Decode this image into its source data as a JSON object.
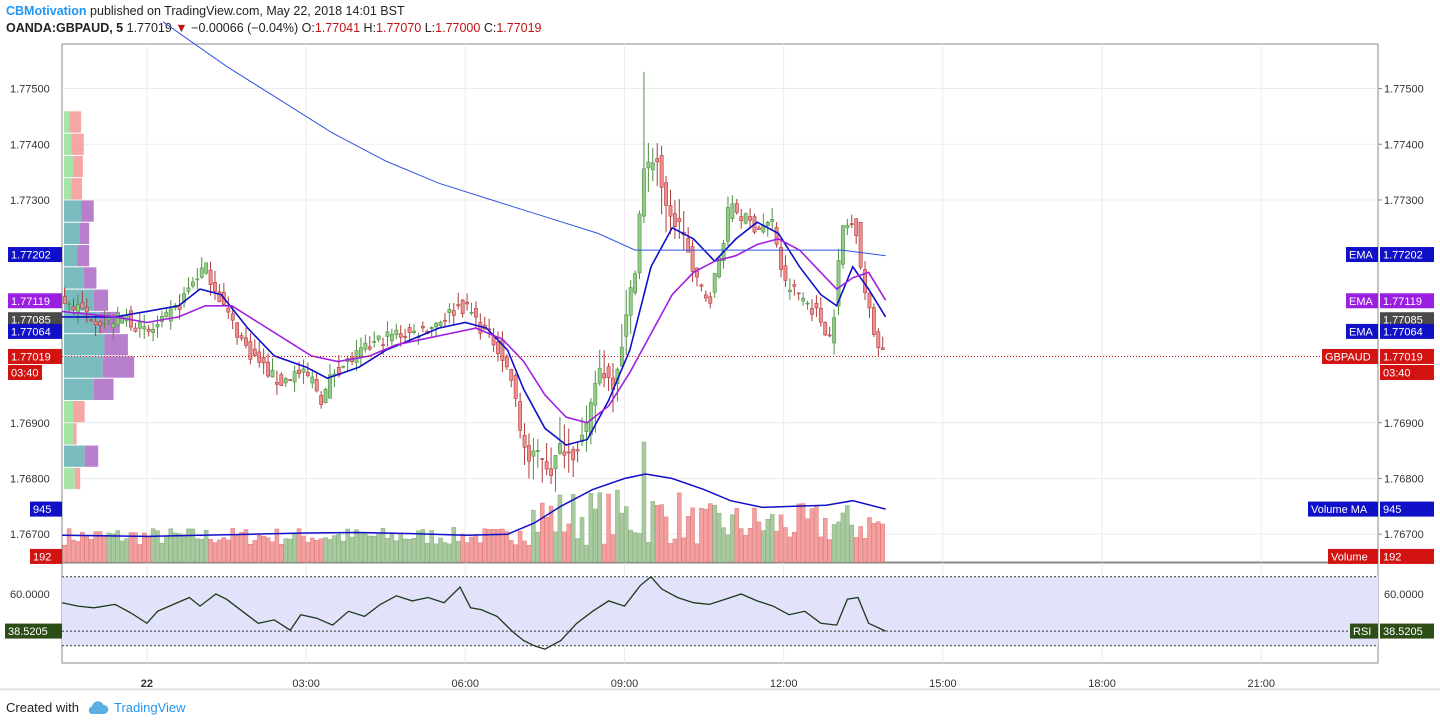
{
  "header": {
    "author": "CBMotivation",
    "published_text": "published on TradingView.com, May 22, 2018 14:01 BST",
    "symbol": "OANDA:GBPAUD, 5",
    "last": "1.77019",
    "change": "−0.00066 (−0.04%)",
    "o_label": "O:",
    "o_val": "1.77041",
    "h_label": "H:",
    "h_val": "1.77070",
    "l_label": "L:",
    "l_val": "1.77000",
    "c_label": "C:",
    "c_val": "1.77019"
  },
  "footer": {
    "created_with": "Created with",
    "brand": "TradingView"
  },
  "colors": {
    "up": "#8fce84",
    "down": "#f08f8f",
    "ema_fast": "#1010c8",
    "ema_slow": "#a020e0",
    "ema_long": "#3355e0",
    "price_line": "#d31212",
    "rsi_line": "#1a3a1a",
    "rsi_band": "#e2e2fb",
    "vol_ma": "#1010c8",
    "label_blue": "#1010c8",
    "label_purple": "#9b1fe0",
    "label_dark": "#4a4a4a",
    "label_red": "#d31212",
    "label_green": "#2d4d17"
  },
  "chart_data": {
    "type": "candlestick",
    "symbol": "GBPAUD",
    "timeframe": "5",
    "price_axis_ticks": [
      "1.77500",
      "1.77400",
      "1.77300",
      "1.76900",
      "1.76800",
      "1.76700"
    ],
    "right_price_ticks": [
      "1.77500",
      "1.77400",
      "1.77300",
      "1.76900",
      "1.76800",
      "1.76700"
    ],
    "ylim": [
      1.7665,
      1.7758
    ],
    "x_tick_labels": [
      "22",
      "03:00",
      "06:00",
      "09:00",
      "12:00",
      "15:00",
      "18:00",
      "21:00"
    ],
    "x_tick_hours": [
      0,
      3,
      6,
      9,
      12,
      15,
      18,
      21
    ],
    "xlim_hours": [
      -1.6,
      23.2
    ],
    "last_hour": 13.92,
    "close_path": [
      [
        -1.6,
        1.7712
      ],
      [
        -1.2,
        1.771
      ],
      [
        -0.8,
        1.7708
      ],
      [
        -0.4,
        1.7709
      ],
      [
        0.0,
        1.7706
      ],
      [
        0.3,
        1.7708
      ],
      [
        0.6,
        1.7711
      ],
      [
        0.9,
        1.7716
      ],
      [
        1.1,
        1.7718
      ],
      [
        1.3,
        1.7714
      ],
      [
        1.6,
        1.7708
      ],
      [
        1.9,
        1.7703
      ],
      [
        2.2,
        1.77
      ],
      [
        2.5,
        1.7697
      ],
      [
        2.8,
        1.7699
      ],
      [
        3.1,
        1.7698
      ],
      [
        3.3,
        1.7694
      ],
      [
        3.5,
        1.7699
      ],
      [
        3.8,
        1.7701
      ],
      [
        4.1,
        1.7703
      ],
      [
        4.4,
        1.7705
      ],
      [
        4.7,
        1.7706
      ],
      [
        5.0,
        1.7706
      ],
      [
        5.3,
        1.7707
      ],
      [
        5.6,
        1.7709
      ],
      [
        5.9,
        1.7711
      ],
      [
        6.1,
        1.771
      ],
      [
        6.3,
        1.7707
      ],
      [
        6.6,
        1.7704
      ],
      [
        6.9,
        1.7697
      ],
      [
        7.0,
        1.769
      ],
      [
        7.2,
        1.7683
      ],
      [
        7.4,
        1.7685
      ],
      [
        7.6,
        1.7681
      ],
      [
        7.8,
        1.7686
      ],
      [
        8.0,
        1.7684
      ],
      [
        8.3,
        1.7689
      ],
      [
        8.5,
        1.77
      ],
      [
        8.8,
        1.7697
      ],
      [
        9.0,
        1.7707
      ],
      [
        9.2,
        1.7718
      ],
      [
        9.35,
        1.7735
      ],
      [
        9.6,
        1.7738
      ],
      [
        9.8,
        1.7727
      ],
      [
        10.1,
        1.7725
      ],
      [
        10.3,
        1.7716
      ],
      [
        10.6,
        1.7712
      ],
      [
        10.8,
        1.772
      ],
      [
        11.0,
        1.773
      ],
      [
        11.2,
        1.7727
      ],
      [
        11.5,
        1.7725
      ],
      [
        11.8,
        1.7726
      ],
      [
        12.0,
        1.7715
      ],
      [
        12.3,
        1.7713
      ],
      [
        12.6,
        1.771
      ],
      [
        12.9,
        1.7705
      ],
      [
        13.1,
        1.7725
      ],
      [
        13.35,
        1.7726
      ],
      [
        13.5,
        1.7715
      ],
      [
        13.7,
        1.7706
      ],
      [
        13.92,
        1.7702
      ]
    ],
    "series": [
      {
        "name": "EMA",
        "role": "fast",
        "last_value": "1.77085",
        "points": [
          [
            -1.6,
            1.7709
          ],
          [
            -0.6,
            1.7709
          ],
          [
            0.0,
            1.771
          ],
          [
            0.6,
            1.7711
          ],
          [
            1.0,
            1.7714
          ],
          [
            1.4,
            1.7713
          ],
          [
            1.9,
            1.7707
          ],
          [
            2.4,
            1.7702
          ],
          [
            3.0,
            1.77
          ],
          [
            3.4,
            1.7698
          ],
          [
            4.0,
            1.77
          ],
          [
            4.5,
            1.7703
          ],
          [
            5.0,
            1.7705
          ],
          [
            5.5,
            1.7707
          ],
          [
            6.0,
            1.7708
          ],
          [
            6.4,
            1.7707
          ],
          [
            6.8,
            1.7703
          ],
          [
            7.1,
            1.7696
          ],
          [
            7.5,
            1.7689
          ],
          [
            7.9,
            1.7686
          ],
          [
            8.3,
            1.7687
          ],
          [
            8.7,
            1.7694
          ],
          [
            9.1,
            1.7703
          ],
          [
            9.5,
            1.7718
          ],
          [
            9.9,
            1.7725
          ],
          [
            10.3,
            1.7723
          ],
          [
            10.7,
            1.7719
          ],
          [
            11.1,
            1.7723
          ],
          [
            11.5,
            1.7726
          ],
          [
            11.9,
            1.7724
          ],
          [
            12.3,
            1.7718
          ],
          [
            12.7,
            1.7713
          ],
          [
            13.0,
            1.7711
          ],
          [
            13.3,
            1.7718
          ],
          [
            13.6,
            1.7714
          ],
          [
            13.92,
            1.7709
          ]
        ]
      },
      {
        "name": "EMA",
        "role": "slow",
        "last_value": "1.77119",
        "points": [
          [
            -1.6,
            1.771
          ],
          [
            -0.6,
            1.7709
          ],
          [
            0.0,
            1.7708
          ],
          [
            0.6,
            1.7709
          ],
          [
            1.1,
            1.7711
          ],
          [
            1.6,
            1.7711
          ],
          [
            2.1,
            1.7708
          ],
          [
            2.6,
            1.7705
          ],
          [
            3.1,
            1.7702
          ],
          [
            3.6,
            1.7701
          ],
          [
            4.2,
            1.7702
          ],
          [
            4.7,
            1.7704
          ],
          [
            5.2,
            1.7705
          ],
          [
            5.7,
            1.7706
          ],
          [
            6.2,
            1.7707
          ],
          [
            6.7,
            1.7705
          ],
          [
            7.1,
            1.7701
          ],
          [
            7.5,
            1.7695
          ],
          [
            7.9,
            1.7691
          ],
          [
            8.3,
            1.769
          ],
          [
            8.7,
            1.7693
          ],
          [
            9.1,
            1.7699
          ],
          [
            9.5,
            1.7706
          ],
          [
            9.9,
            1.7713
          ],
          [
            10.3,
            1.7717
          ],
          [
            10.7,
            1.7719
          ],
          [
            11.1,
            1.772
          ],
          [
            11.5,
            1.7722
          ],
          [
            11.9,
            1.7723
          ],
          [
            12.3,
            1.7721
          ],
          [
            12.7,
            1.7717
          ],
          [
            13.0,
            1.7714
          ],
          [
            13.3,
            1.7716
          ],
          [
            13.6,
            1.7717
          ],
          [
            13.92,
            1.7712
          ]
        ]
      },
      {
        "name": "EMA",
        "role": "long",
        "last_value": "1.77202",
        "points": [
          [
            0.3,
            1.7762
          ],
          [
            1.5,
            1.7754
          ],
          [
            2.5,
            1.7748
          ],
          [
            3.5,
            1.7742
          ],
          [
            4.5,
            1.7737
          ],
          [
            5.5,
            1.7733
          ],
          [
            6.5,
            1.773
          ],
          [
            7.5,
            1.7727
          ],
          [
            8.5,
            1.7724
          ],
          [
            9.2,
            1.7721
          ],
          [
            9.8,
            1.7721
          ],
          [
            10.5,
            1.7721
          ],
          [
            11.0,
            1.7721
          ],
          [
            11.8,
            1.7721
          ],
          [
            12.5,
            1.7721
          ],
          [
            13.1,
            1.7721
          ],
          [
            13.92,
            1.772
          ]
        ]
      }
    ],
    "volume": {
      "last": "192",
      "ma_last": "945",
      "ma_points": [
        [
          -1.6,
          1.76698
        ],
        [
          0.0,
          1.76696
        ],
        [
          1.0,
          1.76698
        ],
        [
          2.0,
          1.767
        ],
        [
          3.0,
          1.76702
        ],
        [
          4.0,
          1.76703
        ],
        [
          5.0,
          1.76701
        ],
        [
          6.0,
          1.76698
        ],
        [
          6.8,
          1.767
        ],
        [
          7.3,
          1.7672
        ],
        [
          7.8,
          1.7675
        ],
        [
          8.4,
          1.7678
        ],
        [
          9.0,
          1.768
        ],
        [
          9.4,
          1.76808
        ],
        [
          9.9,
          1.768
        ],
        [
          10.5,
          1.7678
        ],
        [
          11.0,
          1.7676
        ],
        [
          11.6,
          1.76748
        ],
        [
          12.2,
          1.7675
        ],
        [
          12.8,
          1.76752
        ],
        [
          13.3,
          1.7676
        ],
        [
          13.92,
          1.76745
        ]
      ]
    },
    "volume_profile": [
      {
        "price": 1.7744,
        "up": 0.6,
        "down": 1.3
      },
      {
        "price": 1.774,
        "up": 0.8,
        "down": 1.4
      },
      {
        "price": 1.7736,
        "up": 1.0,
        "down": 1.1
      },
      {
        "price": 1.7732,
        "up": 0.8,
        "down": 1.2
      },
      {
        "price": 1.7728,
        "up": 1.9,
        "down": 1.4
      },
      {
        "price": 1.7724,
        "up": 1.7,
        "down": 1.1
      },
      {
        "price": 1.772,
        "up": 1.5,
        "down": 1.3
      },
      {
        "price": 1.7716,
        "up": 2.2,
        "down": 1.4
      },
      {
        "price": 1.7712,
        "up": 3.3,
        "down": 1.6
      },
      {
        "price": 1.7708,
        "up": 4.0,
        "down": 2.2
      },
      {
        "price": 1.7704,
        "up": 4.5,
        "down": 2.6
      },
      {
        "price": 1.77,
        "up": 4.3,
        "down": 3.5
      },
      {
        "price": 1.7696,
        "up": 3.3,
        "down": 2.2
      },
      {
        "price": 1.7692,
        "up": 1.0,
        "down": 1.3
      },
      {
        "price": 1.7688,
        "up": 1.0,
        "down": 0.4
      },
      {
        "price": 1.7684,
        "up": 2.3,
        "down": 1.5
      },
      {
        "price": 1.768,
        "up": 1.2,
        "down": 0.6
      }
    ],
    "rsi": {
      "name": "RSI",
      "last": "38.5205",
      "tick": "60.0000",
      "ylim": [
        20,
        78
      ],
      "upper_band": 70,
      "lower_band": 30,
      "points": [
        [
          -1.6,
          55
        ],
        [
          -1.3,
          53
        ],
        [
          -1.0,
          52
        ],
        [
          -0.6,
          54
        ],
        [
          -0.3,
          49
        ],
        [
          0.0,
          43
        ],
        [
          0.2,
          50
        ],
        [
          0.5,
          54
        ],
        [
          0.8,
          58
        ],
        [
          1.0,
          53
        ],
        [
          1.3,
          60
        ],
        [
          1.5,
          57
        ],
        [
          1.8,
          50
        ],
        [
          2.1,
          43
        ],
        [
          2.4,
          45
        ],
        [
          2.7,
          39
        ],
        [
          2.9,
          48
        ],
        [
          3.2,
          46
        ],
        [
          3.5,
          42
        ],
        [
          3.8,
          50
        ],
        [
          4.1,
          47
        ],
        [
          4.4,
          54
        ],
        [
          4.7,
          59
        ],
        [
          5.0,
          56
        ],
        [
          5.3,
          58
        ],
        [
          5.6,
          55
        ],
        [
          5.9,
          64
        ],
        [
          6.1,
          52
        ],
        [
          6.3,
          51
        ],
        [
          6.6,
          47
        ],
        [
          6.9,
          38
        ],
        [
          7.1,
          33
        ],
        [
          7.3,
          30
        ],
        [
          7.5,
          28
        ],
        [
          7.8,
          33
        ],
        [
          8.1,
          43
        ],
        [
          8.4,
          50
        ],
        [
          8.7,
          56
        ],
        [
          9.0,
          53
        ],
        [
          9.3,
          65
        ],
        [
          9.5,
          70
        ],
        [
          9.7,
          63
        ],
        [
          10.0,
          58
        ],
        [
          10.3,
          55
        ],
        [
          10.6,
          54
        ],
        [
          10.9,
          57
        ],
        [
          11.2,
          60
        ],
        [
          11.5,
          56
        ],
        [
          11.8,
          53
        ],
        [
          12.1,
          48
        ],
        [
          12.4,
          50
        ],
        [
          12.7,
          43
        ],
        [
          13.0,
          42
        ],
        [
          13.2,
          57
        ],
        [
          13.4,
          58
        ],
        [
          13.6,
          43
        ],
        [
          13.92,
          38.5
        ]
      ]
    }
  },
  "labels": {
    "left_price_labels": [
      "1.77202",
      "1.77119",
      "1.77085",
      "1.77064",
      "1.77019",
      "03:40",
      "945",
      "192",
      "38.5205"
    ],
    "right_price_labels": [
      "1.77202",
      "1.77119",
      "1.77085",
      "1.77064",
      "1.77019",
      "03:40",
      "945",
      "192",
      "38.5205"
    ],
    "right_names": [
      "EMA",
      "EMA",
      "EMA",
      "GBPAUD",
      "Volume MA",
      "Volume",
      "RSI"
    ]
  }
}
